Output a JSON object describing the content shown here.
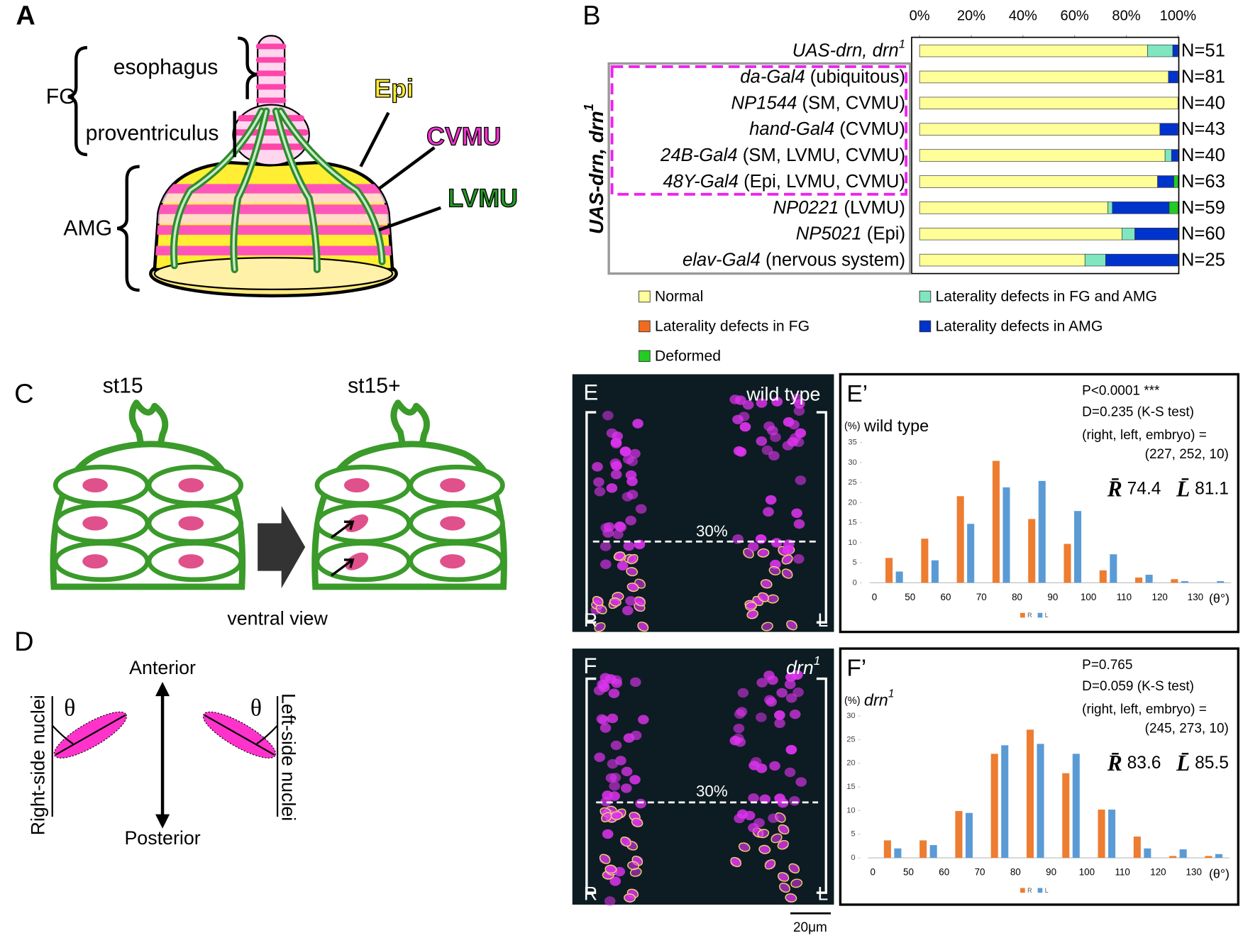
{
  "figure": {
    "panel_A": {
      "letter": "A",
      "fg": "FG",
      "esophagus": "esophagus",
      "proventriculus": "proventriculus",
      "amg": "AMG",
      "epi": "Epi",
      "cvmu": "CVMU",
      "lvmu": "LVMU"
    },
    "panel_C": {
      "letter": "C",
      "left_stage": "st15",
      "right_stage": "st15+",
      "caption": "ventral view"
    },
    "panel_D": {
      "letter": "D",
      "anterior": "Anterior",
      "posterior": "Posterior",
      "right_label": "Right-side nuclei",
      "left_label": "Left-side nuclei",
      "angle": "θ"
    },
    "panel_E": {
      "letter": "E",
      "genotype": "wild type",
      "right": "R",
      "left": "L",
      "line_label": "30%"
    },
    "panel_F": {
      "letter": "F",
      "genotype": "drn1",
      "right": "R",
      "left": "L",
      "line_label": "30%",
      "scale_bar": "20μm"
    }
  },
  "chart_data": [
    {
      "type": "barh",
      "panel": "B",
      "group_label": "UAS-drn, drn1",
      "categories": [
        "UAS-drn, drn1",
        "da-Gal4 (ubiquitous)",
        "NP1544 (SM, CVMU)",
        "hand-Gal4 (CVMU)",
        "24B-Gal4 (SM, LVMU, CVMU)",
        "48Y-Gal4 (Epi, LVMU, CVMU)",
        "NP0221 (LVMU)",
        "NP5021 (Epi)",
        "elav-Gal4 (nervous system)"
      ],
      "n_labels": [
        "N=51",
        "N=81",
        "N=40",
        "N=43",
        "N=40",
        "N=63",
        "N=59",
        "N=60",
        "N=25"
      ],
      "series": [
        {
          "name": "Normal",
          "color": "#ffff99",
          "values": [
            88.2,
            96.3,
            100,
            93.0,
            95.0,
            92.1,
            72.9,
            78.3,
            64.0
          ]
        },
        {
          "name": "Laterality defects in FG and AMG",
          "color": "#7fe6c0",
          "values": [
            9.8,
            0,
            0,
            0,
            2.5,
            0,
            1.7,
            5.0,
            8.0
          ]
        },
        {
          "name": "Laterality defects in FG",
          "color": "#f26b1d",
          "values": [
            0,
            0,
            0,
            0,
            0,
            0,
            0,
            0,
            0
          ]
        },
        {
          "name": "Laterality defects in AMG",
          "color": "#0033cc",
          "values": [
            2.0,
            3.7,
            0,
            7.0,
            2.5,
            6.3,
            22.0,
            16.7,
            28.0
          ]
        },
        {
          "name": "Deformed",
          "color": "#22cc22",
          "values": [
            0,
            0,
            0,
            0,
            0,
            1.6,
            3.4,
            0,
            0
          ]
        }
      ],
      "xlim": [
        0,
        100
      ],
      "xticks": [
        {
          "value": 0,
          "label": "0%"
        },
        {
          "value": 20,
          "label": "20%"
        },
        {
          "value": 40,
          "label": "40%"
        },
        {
          "value": 60,
          "label": "60%"
        },
        {
          "value": 80,
          "label": "80%"
        },
        {
          "value": 100,
          "label": "100%"
        }
      ]
    },
    {
      "type": "bar",
      "panel": "E’",
      "title": "wild type",
      "y_unit": "(%)",
      "x_unit": "(θ°)",
      "annotations": [
        "P<0.0001 ***",
        "D=0.235 (K-S test)",
        "(right, left, embryo) =",
        "(227, 252, 10)"
      ],
      "means": [
        "R̄ 74.4",
        "L̄ 81.1"
      ],
      "categories": [
        "0",
        "50",
        "60",
        "70",
        "80",
        "90",
        "100",
        "110",
        "120",
        "130"
      ],
      "series": [
        {
          "name": "R",
          "color": "#ed7d31",
          "values": [
            6.2,
            11.0,
            21.6,
            30.4,
            15.9,
            9.7,
            3.1,
            1.3,
            0.9,
            0
          ]
        },
        {
          "name": "L",
          "color": "#5b9bd5",
          "values": [
            2.8,
            5.6,
            14.7,
            23.8,
            25.4,
            17.9,
            7.1,
            2.0,
            0.4,
            0.4
          ]
        }
      ],
      "ylim": [
        0,
        35
      ],
      "yticks": [
        0,
        5,
        10,
        15,
        20,
        25,
        30,
        35
      ]
    },
    {
      "type": "bar",
      "panel": "F’",
      "title": "drn1",
      "y_unit": "(%)",
      "x_unit": "(θ°)",
      "annotations": [
        "P=0.765",
        "D=0.059 (K-S test)",
        "(right, left, embryo) =",
        "(245, 273, 10)"
      ],
      "means": [
        "R̄ 83.6",
        "L̄ 85.5"
      ],
      "categories": [
        "0",
        "50",
        "60",
        "70",
        "80",
        "90",
        "100",
        "110",
        "120",
        "130"
      ],
      "series": [
        {
          "name": "R",
          "color": "#ed7d31",
          "values": [
            3.7,
            3.7,
            9.9,
            22.0,
            27.1,
            17.9,
            10.2,
            4.5,
            0.4,
            0.4
          ]
        },
        {
          "name": "L",
          "color": "#5b9bd5",
          "values": [
            2.0,
            2.7,
            9.5,
            23.8,
            24.1,
            22.0,
            10.2,
            2.0,
            1.8,
            0.8
          ]
        }
      ],
      "ylim": [
        0,
        30
      ],
      "yticks": [
        0,
        5,
        10,
        15,
        20,
        25,
        30
      ]
    }
  ]
}
